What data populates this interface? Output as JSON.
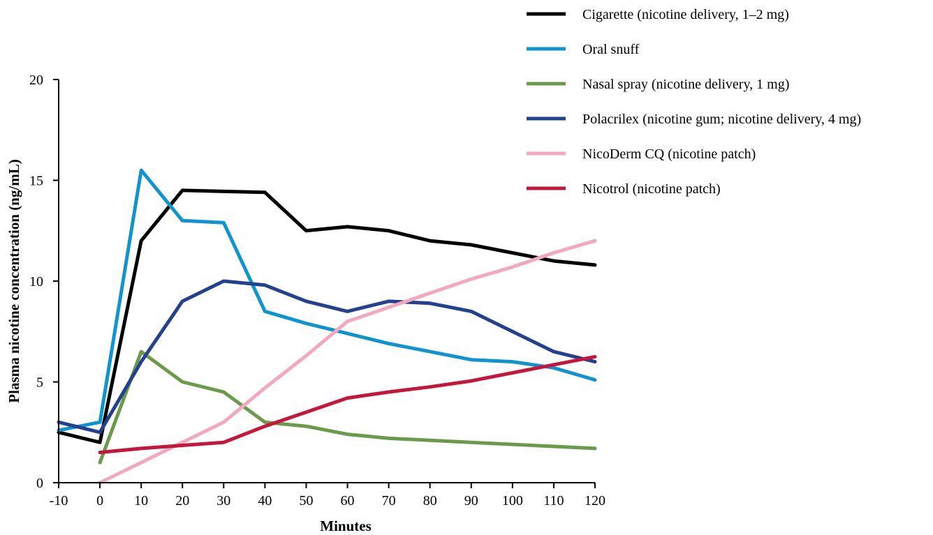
{
  "chart_data": {
    "type": "line",
    "title": "",
    "xlabel": "Minutes",
    "ylabel": "Plasma nicotine concentration (ng/mL)",
    "xlim": [
      -10,
      120
    ],
    "ylim": [
      0,
      20
    ],
    "x_ticks": [
      -10,
      0,
      10,
      20,
      30,
      40,
      50,
      60,
      70,
      80,
      90,
      100,
      110,
      120
    ],
    "y_ticks": [
      0,
      5,
      10,
      15,
      20
    ],
    "grid": false,
    "legend_position": "top-right",
    "series": [
      {
        "name": "Cigarette (nicotine delivery, 1–2 mg)",
        "color": "#000000",
        "x": [
          -10,
          0,
          10,
          20,
          30,
          40,
          50,
          60,
          70,
          80,
          90,
          100,
          110,
          120
        ],
        "y": [
          2.5,
          2.0,
          12.0,
          14.5,
          14.45,
          14.4,
          12.5,
          12.7,
          12.5,
          12.0,
          11.8,
          11.4,
          11.0,
          10.8
        ]
      },
      {
        "name": "Oral snuff",
        "color": "#0f94cf",
        "x": [
          -10,
          0,
          10,
          20,
          30,
          40,
          50,
          60,
          70,
          80,
          90,
          100,
          110,
          120
        ],
        "y": [
          2.6,
          3.0,
          15.5,
          13.0,
          12.9,
          8.5,
          7.9,
          7.4,
          6.9,
          6.5,
          6.1,
          6.0,
          5.7,
          5.1
        ]
      },
      {
        "name": "Nasal spray (nicotine delivery, 1 mg)",
        "color": "#6b9a4a",
        "x": [
          0,
          10,
          20,
          30,
          40,
          50,
          60,
          70,
          80,
          90,
          100,
          110,
          120
        ],
        "y": [
          1.0,
          6.5,
          5.0,
          4.5,
          3.0,
          2.8,
          2.4,
          2.2,
          2.1,
          2.0,
          1.9,
          1.8,
          1.7
        ]
      },
      {
        "name": "Polacrilex (nicotine gum; nicotine delivery, 4 mg)",
        "color": "#24418f",
        "x": [
          -10,
          0,
          10,
          20,
          30,
          40,
          50,
          60,
          70,
          80,
          90,
          100,
          110,
          120
        ],
        "y": [
          3.0,
          2.5,
          6.0,
          9.0,
          10.0,
          9.8,
          9.0,
          8.5,
          9.0,
          8.9,
          8.5,
          7.5,
          6.5,
          6.0
        ]
      },
      {
        "name": "NicoDerm CQ (nicotine patch)",
        "color": "#f2a9bd",
        "x": [
          0,
          10,
          20,
          30,
          40,
          50,
          60,
          70,
          80,
          90,
          100,
          110,
          120
        ],
        "y": [
          0.0,
          1.0,
          2.0,
          3.0,
          4.7,
          6.3,
          8.0,
          8.7,
          9.4,
          10.1,
          10.7,
          11.4,
          12.0
        ]
      },
      {
        "name": "Nicotrol (nicotine patch)",
        "color": "#c4173c",
        "x": [
          0,
          10,
          20,
          30,
          40,
          50,
          60,
          70,
          80,
          90,
          100,
          110,
          120
        ],
        "y": [
          1.5,
          1.7,
          1.85,
          2.0,
          2.8,
          3.5,
          4.2,
          4.5,
          4.75,
          5.05,
          5.45,
          5.85,
          6.25
        ]
      }
    ]
  }
}
